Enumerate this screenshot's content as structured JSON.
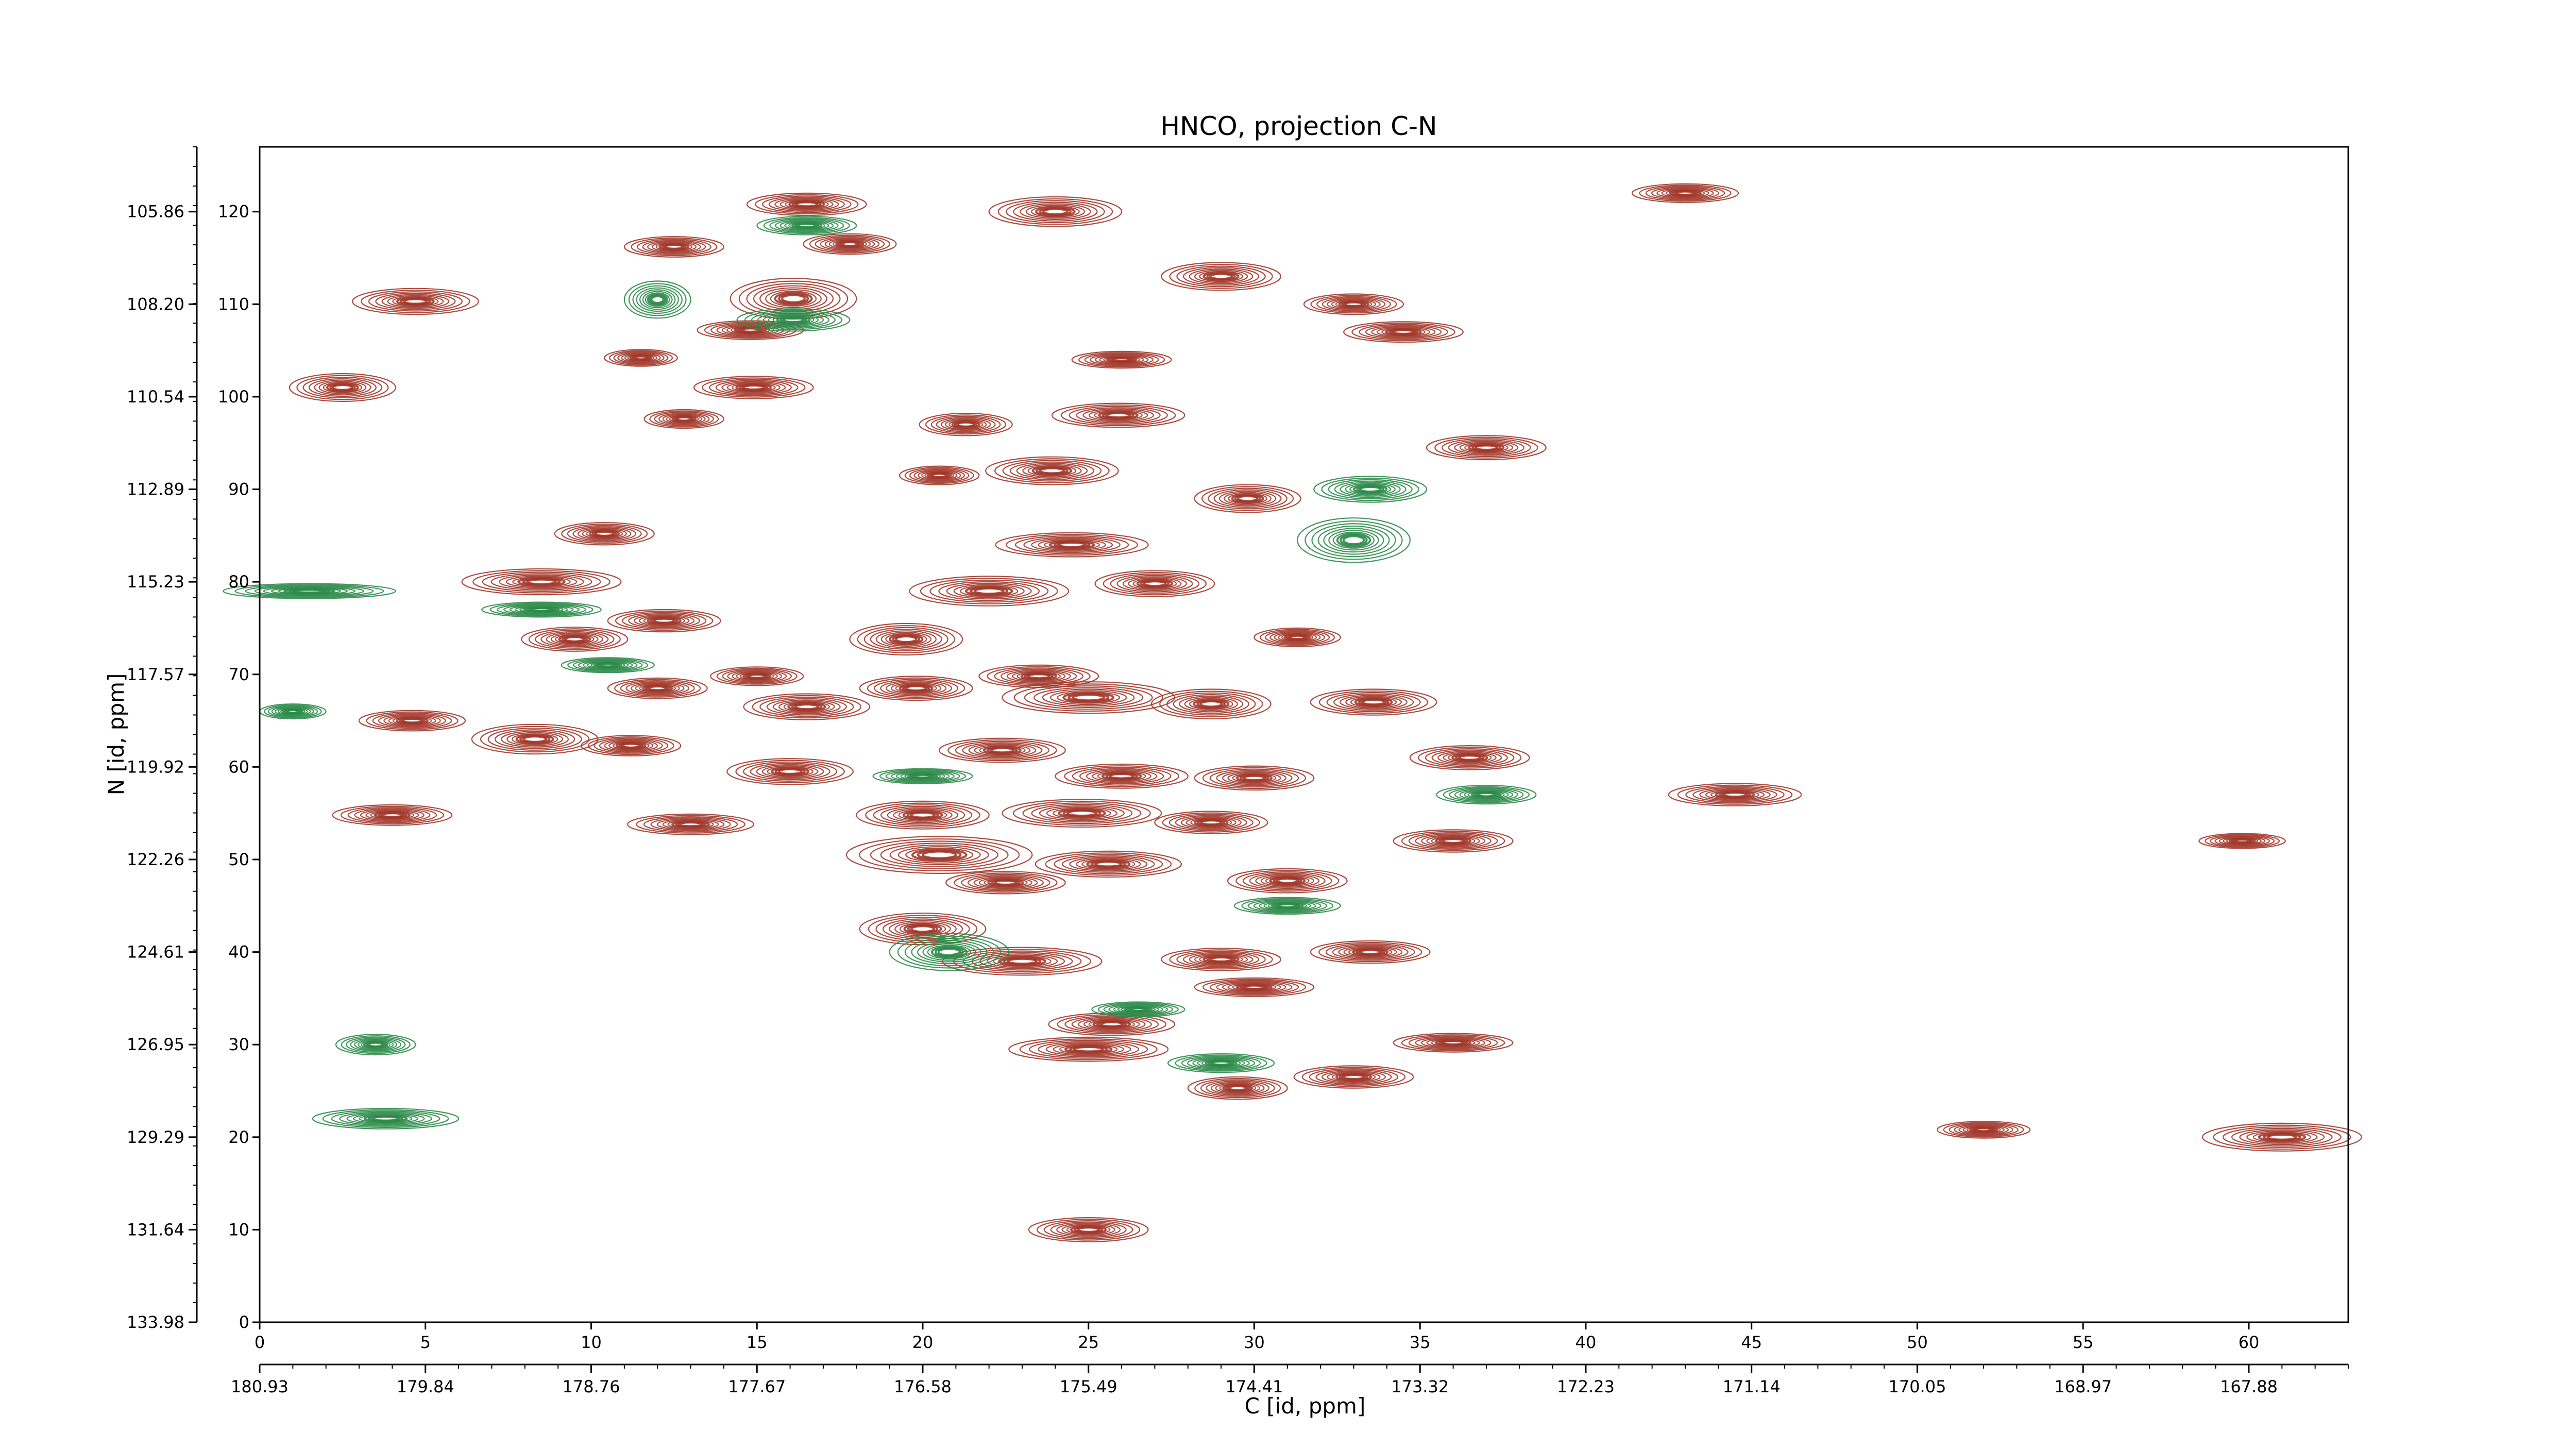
{
  "chart_data": {
    "type": "contour",
    "title": "HNCO, projection C-N",
    "xlabel": "C [id, ppm]",
    "ylabel": "N [id, ppm]",
    "x_index_range": [
      0,
      63
    ],
    "y_index_range": [
      0,
      127
    ],
    "x_index_ticks": [
      0,
      5,
      10,
      15,
      20,
      25,
      30,
      35,
      40,
      45,
      50,
      55,
      60
    ],
    "y_index_ticks": [
      0,
      10,
      20,
      30,
      40,
      50,
      60,
      70,
      80,
      90,
      100,
      110,
      120
    ],
    "x_ppm_ticks": [
      "180.93",
      "179.84",
      "178.76",
      "177.67",
      "176.58",
      "175.49",
      "174.41",
      "173.32",
      "172.23",
      "171.14",
      "170.05",
      "168.97",
      "167.88"
    ],
    "y_ppm_ticks": [
      "133.98",
      "131.64",
      "129.29",
      "126.95",
      "124.61",
      "122.26",
      "119.92",
      "117.57",
      "115.23",
      "112.89",
      "110.54",
      "108.20",
      "105.86"
    ],
    "colors": {
      "positive": "#a2382b",
      "negative": "#2e8b4a"
    },
    "peaks": [
      {
        "x": 4.7,
        "y": 110.3,
        "wx": 1.9,
        "wy": 1.4,
        "sign": 1
      },
      {
        "x": 2.5,
        "y": 101.0,
        "wx": 1.6,
        "wy": 1.5,
        "sign": 1
      },
      {
        "x": 12.5,
        "y": 116.2,
        "wx": 1.5,
        "wy": 1.1,
        "sign": 1
      },
      {
        "x": 16.5,
        "y": 120.8,
        "wx": 1.8,
        "wy": 1.2,
        "sign": 1
      },
      {
        "x": 17.8,
        "y": 116.5,
        "wx": 1.4,
        "wy": 1.1,
        "sign": 1
      },
      {
        "x": 16.1,
        "y": 110.6,
        "wx": 1.9,
        "wy": 2.2,
        "sign": 1
      },
      {
        "x": 14.8,
        "y": 107.2,
        "wx": 1.6,
        "wy": 1.0,
        "sign": 1
      },
      {
        "x": 14.9,
        "y": 101.0,
        "wx": 1.8,
        "wy": 1.2,
        "sign": 1
      },
      {
        "x": 24.0,
        "y": 120.0,
        "wx": 2.0,
        "wy": 1.6,
        "sign": 1
      },
      {
        "x": 26.0,
        "y": 104.0,
        "wx": 1.5,
        "wy": 0.9,
        "sign": 1
      },
      {
        "x": 29.0,
        "y": 113.0,
        "wx": 1.8,
        "wy": 1.5,
        "sign": 1
      },
      {
        "x": 33.0,
        "y": 110.0,
        "wx": 1.5,
        "wy": 1.1,
        "sign": 1
      },
      {
        "x": 34.5,
        "y": 107.0,
        "wx": 1.8,
        "wy": 1.1,
        "sign": 1
      },
      {
        "x": 11.5,
        "y": 104.2,
        "wx": 1.1,
        "wy": 0.9,
        "sign": 1
      },
      {
        "x": 25.9,
        "y": 98.0,
        "wx": 2.0,
        "wy": 1.3,
        "sign": 1
      },
      {
        "x": 21.3,
        "y": 97.0,
        "wx": 1.4,
        "wy": 1.2,
        "sign": 1
      },
      {
        "x": 12.8,
        "y": 97.6,
        "wx": 1.2,
        "wy": 1.0,
        "sign": 1
      },
      {
        "x": 23.9,
        "y": 92.0,
        "wx": 2.0,
        "wy": 1.5,
        "sign": 1
      },
      {
        "x": 20.5,
        "y": 91.5,
        "wx": 1.2,
        "wy": 1.0,
        "sign": 1
      },
      {
        "x": 10.4,
        "y": 85.2,
        "wx": 1.5,
        "wy": 1.2,
        "sign": 1
      },
      {
        "x": 29.8,
        "y": 89.0,
        "wx": 1.6,
        "wy": 1.5,
        "sign": 1
      },
      {
        "x": 37.0,
        "y": 94.5,
        "wx": 1.8,
        "wy": 1.3,
        "sign": 1
      },
      {
        "x": 24.5,
        "y": 84.0,
        "wx": 2.3,
        "wy": 1.3,
        "sign": 1
      },
      {
        "x": 8.5,
        "y": 80.0,
        "wx": 2.4,
        "wy": 1.4,
        "sign": 1
      },
      {
        "x": 22.0,
        "y": 79.0,
        "wx": 2.4,
        "wy": 1.6,
        "sign": 1
      },
      {
        "x": 27.0,
        "y": 79.8,
        "wx": 1.8,
        "wy": 1.4,
        "sign": 1
      },
      {
        "x": 12.2,
        "y": 75.8,
        "wx": 1.7,
        "wy": 1.2,
        "sign": 1
      },
      {
        "x": 9.5,
        "y": 73.8,
        "wx": 1.6,
        "wy": 1.3,
        "sign": 1
      },
      {
        "x": 19.5,
        "y": 73.8,
        "wx": 1.7,
        "wy": 1.7,
        "sign": 1
      },
      {
        "x": 31.3,
        "y": 74.0,
        "wx": 1.3,
        "wy": 1.0,
        "sign": 1
      },
      {
        "x": 15.0,
        "y": 69.8,
        "wx": 1.4,
        "wy": 1.0,
        "sign": 1
      },
      {
        "x": 23.5,
        "y": 69.8,
        "wx": 1.8,
        "wy": 1.2,
        "sign": 1
      },
      {
        "x": 12.0,
        "y": 68.5,
        "wx": 1.5,
        "wy": 1.1,
        "sign": 1
      },
      {
        "x": 16.5,
        "y": 66.5,
        "wx": 1.9,
        "wy": 1.4,
        "sign": 1
      },
      {
        "x": 19.8,
        "y": 68.5,
        "wx": 1.7,
        "wy": 1.3,
        "sign": 1
      },
      {
        "x": 25.0,
        "y": 67.5,
        "wx": 2.6,
        "wy": 1.7,
        "sign": 1
      },
      {
        "x": 28.7,
        "y": 66.8,
        "wx": 1.8,
        "wy": 1.6,
        "sign": 1
      },
      {
        "x": 33.6,
        "y": 67.0,
        "wx": 1.9,
        "wy": 1.4,
        "sign": 1
      },
      {
        "x": 4.6,
        "y": 65.0,
        "wx": 1.6,
        "wy": 1.1,
        "sign": 1
      },
      {
        "x": 8.3,
        "y": 63.0,
        "wx": 1.9,
        "wy": 1.6,
        "sign": 1
      },
      {
        "x": 11.2,
        "y": 62.3,
        "wx": 1.5,
        "wy": 1.1,
        "sign": 1
      },
      {
        "x": 16.0,
        "y": 59.5,
        "wx": 1.9,
        "wy": 1.4,
        "sign": 1
      },
      {
        "x": 22.4,
        "y": 61.8,
        "wx": 1.9,
        "wy": 1.3,
        "sign": 1
      },
      {
        "x": 26.0,
        "y": 59.0,
        "wx": 2.0,
        "wy": 1.3,
        "sign": 1
      },
      {
        "x": 30.0,
        "y": 58.8,
        "wx": 1.8,
        "wy": 1.3,
        "sign": 1
      },
      {
        "x": 36.5,
        "y": 61.0,
        "wx": 1.8,
        "wy": 1.3,
        "sign": 1
      },
      {
        "x": 44.5,
        "y": 57.0,
        "wx": 2.0,
        "wy": 1.2,
        "sign": 1
      },
      {
        "x": 4.0,
        "y": 54.8,
        "wx": 1.8,
        "wy": 1.1,
        "sign": 1
      },
      {
        "x": 13.0,
        "y": 53.8,
        "wx": 1.9,
        "wy": 1.1,
        "sign": 1
      },
      {
        "x": 20.0,
        "y": 54.8,
        "wx": 2.0,
        "wy": 1.5,
        "sign": 1
      },
      {
        "x": 24.8,
        "y": 55.0,
        "wx": 2.4,
        "wy": 1.5,
        "sign": 1
      },
      {
        "x": 28.7,
        "y": 54.0,
        "wx": 1.7,
        "wy": 1.2,
        "sign": 1
      },
      {
        "x": 20.5,
        "y": 50.5,
        "wx": 2.8,
        "wy": 2.0,
        "sign": 1
      },
      {
        "x": 25.6,
        "y": 49.5,
        "wx": 2.2,
        "wy": 1.4,
        "sign": 1
      },
      {
        "x": 36.0,
        "y": 52.0,
        "wx": 1.8,
        "wy": 1.2,
        "sign": 1
      },
      {
        "x": 31.0,
        "y": 47.7,
        "wx": 1.8,
        "wy": 1.3,
        "sign": 1
      },
      {
        "x": 22.5,
        "y": 47.5,
        "wx": 1.8,
        "wy": 1.2,
        "sign": 1
      },
      {
        "x": 20.0,
        "y": 42.5,
        "wx": 1.9,
        "wy": 1.7,
        "sign": 1
      },
      {
        "x": 23.0,
        "y": 39.0,
        "wx": 2.4,
        "wy": 1.5,
        "sign": 1
      },
      {
        "x": 29.0,
        "y": 39.2,
        "wx": 1.8,
        "wy": 1.2,
        "sign": 1
      },
      {
        "x": 33.5,
        "y": 40.0,
        "wx": 1.8,
        "wy": 1.2,
        "sign": 1
      },
      {
        "x": 30.0,
        "y": 36.2,
        "wx": 1.8,
        "wy": 1.0,
        "sign": 1
      },
      {
        "x": 25.7,
        "y": 32.2,
        "wx": 1.9,
        "wy": 1.2,
        "sign": 1
      },
      {
        "x": 25.0,
        "y": 29.5,
        "wx": 2.4,
        "wy": 1.3,
        "sign": 1
      },
      {
        "x": 36.0,
        "y": 30.2,
        "wx": 1.8,
        "wy": 1.0,
        "sign": 1
      },
      {
        "x": 29.5,
        "y": 25.3,
        "wx": 1.5,
        "wy": 1.2,
        "sign": 1
      },
      {
        "x": 33.0,
        "y": 26.5,
        "wx": 1.8,
        "wy": 1.2,
        "sign": 1
      },
      {
        "x": 25.0,
        "y": 10.0,
        "wx": 1.8,
        "wy": 1.3,
        "sign": 1
      },
      {
        "x": 61.0,
        "y": 20.0,
        "wx": 2.4,
        "wy": 1.5,
        "sign": 1
      },
      {
        "x": 43.0,
        "y": 122.0,
        "wx": 1.6,
        "wy": 1.0,
        "sign": 1
      },
      {
        "x": 59.8,
        "y": 52.0,
        "wx": 1.3,
        "wy": 0.8,
        "sign": 1
      },
      {
        "x": 52.0,
        "y": 20.8,
        "wx": 1.4,
        "wy": 0.9,
        "sign": 1
      },
      {
        "x": 16.5,
        "y": 118.5,
        "wx": 1.5,
        "wy": 1.0,
        "sign": -1
      },
      {
        "x": 12.0,
        "y": 110.5,
        "wx": 1.0,
        "wy": 2.0,
        "sign": -1
      },
      {
        "x": 16.1,
        "y": 108.3,
        "wx": 1.7,
        "wy": 1.2,
        "sign": -1
      },
      {
        "x": 33.5,
        "y": 90.0,
        "wx": 1.7,
        "wy": 1.4,
        "sign": -1
      },
      {
        "x": 33.0,
        "y": 84.5,
        "wx": 1.7,
        "wy": 2.4,
        "sign": -1
      },
      {
        "x": 1.5,
        "y": 79.0,
        "wx": 2.6,
        "wy": 0.8,
        "sign": -1
      },
      {
        "x": 3.5,
        "y": 30.0,
        "wx": 1.2,
        "wy": 1.1,
        "sign": -1
      },
      {
        "x": 3.8,
        "y": 22.0,
        "wx": 2.2,
        "wy": 1.1,
        "sign": -1
      },
      {
        "x": 20.8,
        "y": 40.0,
        "wx": 1.8,
        "wy": 2.0,
        "sign": -1
      },
      {
        "x": 37.0,
        "y": 57.0,
        "wx": 1.5,
        "wy": 1.0,
        "sign": -1
      },
      {
        "x": 31.0,
        "y": 45.0,
        "wx": 1.6,
        "wy": 0.9,
        "sign": -1
      },
      {
        "x": 29.0,
        "y": 28.0,
        "wx": 1.6,
        "wy": 1.0,
        "sign": -1
      },
      {
        "x": 26.5,
        "y": 33.8,
        "wx": 1.4,
        "wy": 0.8,
        "sign": -1
      },
      {
        "x": 20.0,
        "y": 59.0,
        "wx": 1.5,
        "wy": 0.8,
        "sign": -1
      },
      {
        "x": 8.5,
        "y": 77.0,
        "wx": 1.8,
        "wy": 0.8,
        "sign": -1
      },
      {
        "x": 1.0,
        "y": 66.0,
        "wx": 1.0,
        "wy": 0.8,
        "sign": -1
      },
      {
        "x": 10.5,
        "y": 71.0,
        "wx": 1.4,
        "wy": 0.8,
        "sign": -1
      }
    ]
  }
}
